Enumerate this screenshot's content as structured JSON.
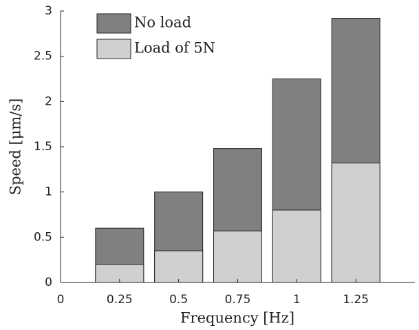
{
  "chart_data": {
    "type": "bar",
    "xlabel": "Frequency [Hz]",
    "ylabel": "Speed [μm/s]",
    "x": [
      0.25,
      0.5,
      0.75,
      1,
      1.25
    ],
    "series": [
      {
        "name": "No load",
        "color": "#808080",
        "values": [
          0.6,
          1.0,
          1.48,
          2.25,
          2.92
        ]
      },
      {
        "name": "Load of 5N",
        "color": "#d0d0d0",
        "values": [
          0.2,
          0.35,
          0.57,
          0.8,
          1.32
        ]
      }
    ],
    "xlim": [
      0,
      1.5
    ],
    "xticks": [
      0,
      0.25,
      0.5,
      0.75,
      1,
      1.25
    ],
    "ylim": [
      0,
      3
    ],
    "yticks": [
      0,
      0.5,
      1,
      1.5,
      2,
      2.5,
      3
    ],
    "legend": "upper left"
  }
}
